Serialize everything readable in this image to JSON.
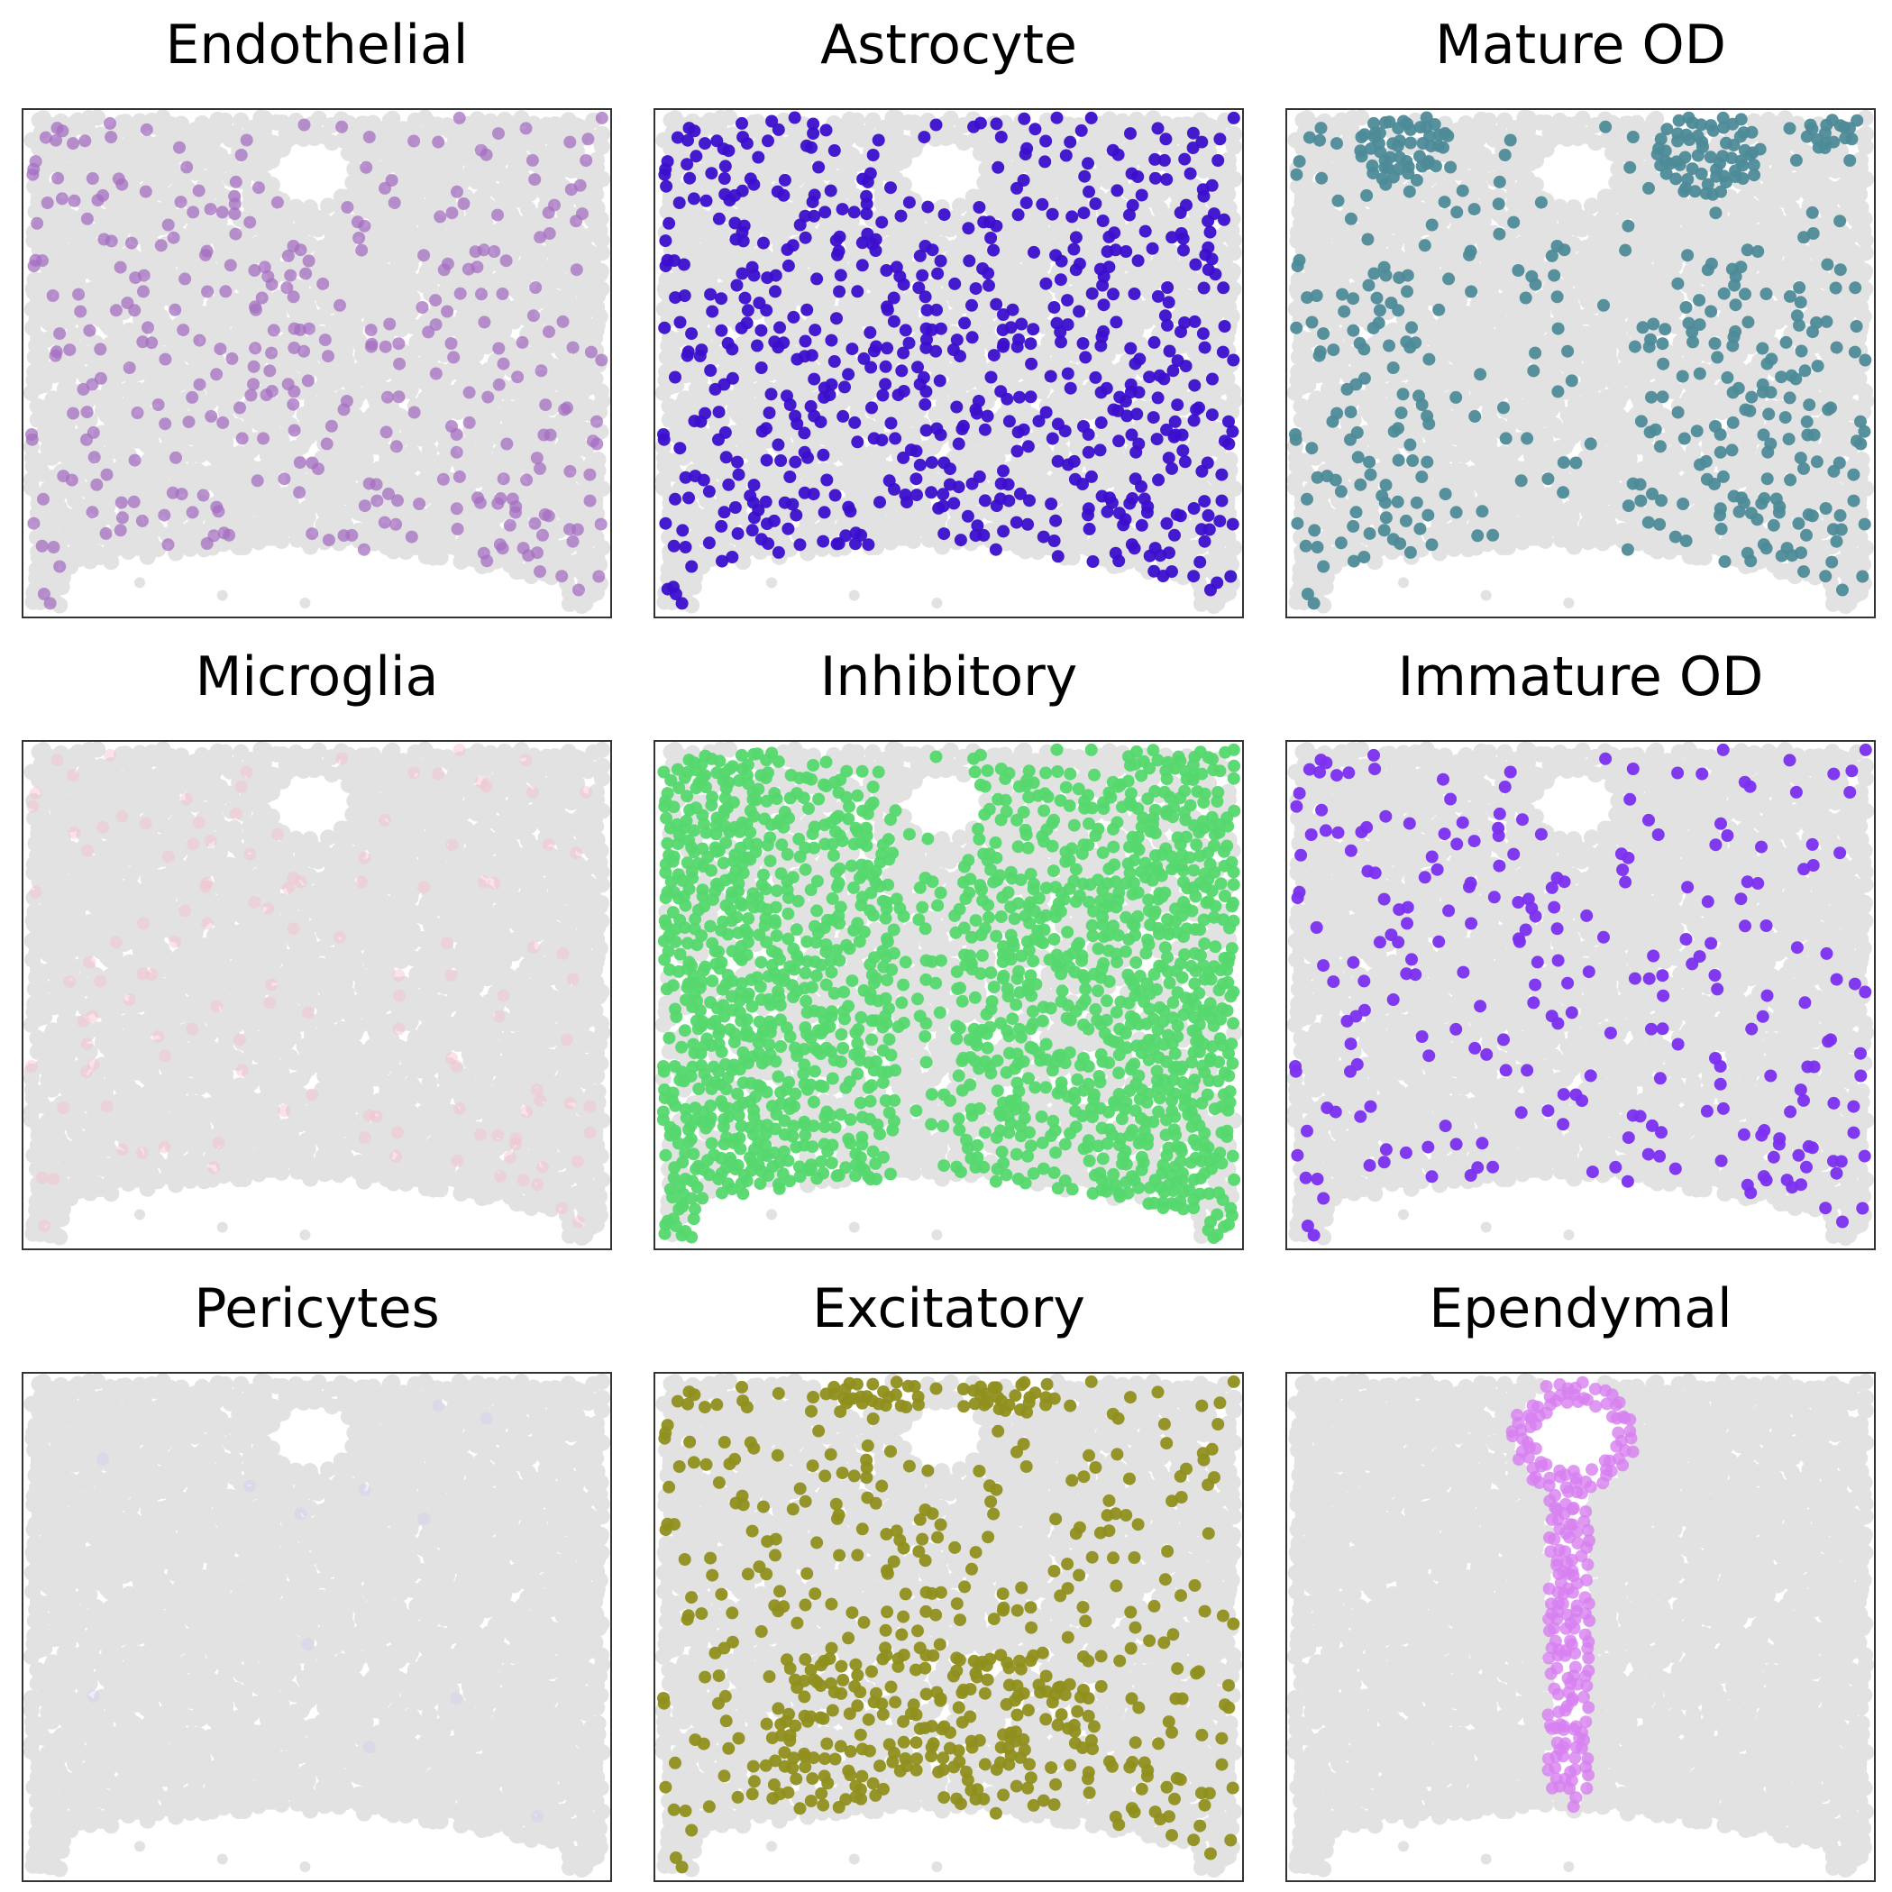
{
  "chart_data": [
    {
      "type": "scatter",
      "title": "Endothelial",
      "highlight_color": "#a66fc1",
      "highlight_opacity": 0.75,
      "density": 0.11,
      "pattern": "uniform-scattered"
    },
    {
      "type": "scatter",
      "title": "Astrocyte",
      "highlight_color": "#3b0fcc",
      "highlight_opacity": 0.95,
      "density": 0.22,
      "pattern": "uniform-scattered"
    },
    {
      "type": "scatter",
      "title": "Mature OD",
      "highlight_color": "#4d8b98",
      "highlight_opacity": 0.95,
      "density": 0.12,
      "pattern": "top-corner-clusters"
    },
    {
      "type": "scatter",
      "title": "Microglia",
      "highlight_color": "#f6bfcc",
      "highlight_opacity": 0.45,
      "density": 0.04,
      "pattern": "sparse-faint"
    },
    {
      "type": "scatter",
      "title": "Inhibitory",
      "highlight_color": "#55d86e",
      "highlight_opacity": 0.95,
      "density": 0.55,
      "pattern": "dense-lateral"
    },
    {
      "type": "scatter",
      "title": "Immature OD",
      "highlight_color": "#7b2ff0",
      "highlight_opacity": 0.95,
      "density": 0.08,
      "pattern": "uniform-scattered"
    },
    {
      "type": "scatter",
      "title": "Pericytes",
      "highlight_color": "#c9c9f2",
      "highlight_opacity": 0.35,
      "density": 0.005,
      "pattern": "near-none"
    },
    {
      "type": "scatter",
      "title": "Excitatory",
      "highlight_color": "#8f8f1f",
      "highlight_opacity": 0.95,
      "density": 0.3,
      "pattern": "top-and-lower-center"
    },
    {
      "type": "scatter",
      "title": "Ependymal",
      "highlight_color": "#d77ff0",
      "highlight_opacity": 0.8,
      "density": 0.0,
      "pattern": "central-canal"
    }
  ],
  "background_point_color": "#e2e2e2",
  "axis_ticks": "none"
}
